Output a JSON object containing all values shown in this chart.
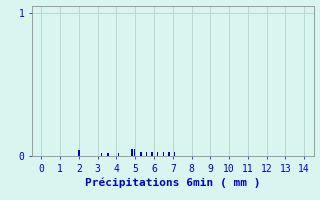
{
  "bar_positions": [
    2.0,
    3.2,
    3.55,
    4.1,
    4.82,
    4.95,
    5.3,
    5.6,
    5.9,
    6.2,
    6.5,
    6.8,
    7.1
  ],
  "bar_heights": [
    0.04,
    0.02,
    0.02,
    0.02,
    0.05,
    0.05,
    0.03,
    0.03,
    0.03,
    0.03,
    0.03,
    0.03,
    0.03
  ],
  "bar_color": "#0000cc",
  "bar_width": 0.07,
  "background_color": "#d8f5f0",
  "grid_color": "#b8d8d0",
  "axis_color": "#909090",
  "text_color": "#0000cc",
  "xlabel": "Précipitations 6min ( mm )",
  "xlabel_fontsize": 8,
  "yticks": [
    0,
    1
  ],
  "ylim": [
    0,
    1.05
  ],
  "xlim": [
    -0.5,
    14.5
  ],
  "xticks": [
    0,
    1,
    2,
    3,
    4,
    5,
    6,
    7,
    8,
    9,
    10,
    11,
    12,
    13,
    14
  ],
  "tick_fontsize": 7
}
